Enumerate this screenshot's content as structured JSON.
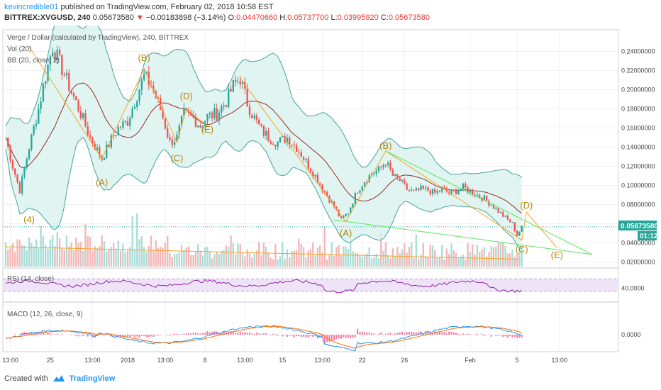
{
  "header": {
    "username": "kevincredible01",
    "published_text": "published on TradingView.com, February 02, 2018 10:58 EST",
    "symbol": "BITTREX:XVGUSD, 240",
    "last": "0.05673580",
    "change_arrow": "▼",
    "change": "−0.00183898 (−3.14%)",
    "open_label": "O:",
    "open": "0.04470660",
    "high_label": "H:",
    "high": "0.05737700",
    "low_label": "L:",
    "low": "0.03995920",
    "close_label": "C:",
    "close": "0.05673580"
  },
  "legend": {
    "title": "Verge / Dollar (calculated by TradingView), 240, BITTREX",
    "vol": "Vol (20)",
    "bb": "BB (20, close, 2)",
    "rsi": "RSI (14, close)",
    "macd": "MACD (12, 26, close, 9)"
  },
  "price_badge": "0.05673580",
  "time_badge": "01:12",
  "footer": {
    "created_with": "Created with",
    "brand": "TradingView"
  },
  "colors": {
    "up": "#26a69a",
    "down": "#ef5350",
    "bb": "#4aa39a",
    "bb_fill": "#d8f1ee",
    "basis": "#9c2a2a",
    "wave": "#f5a623",
    "trend": "#5ce65c",
    "rsi": "#8e24aa",
    "rsi_band": "#efe4f7",
    "macd": "#2196f3",
    "signal": "#ff6d00",
    "hist": "#e91e63"
  },
  "chart_data": {
    "type": "candlestick",
    "x_ticks": [
      "13:00",
      "25",
      "13:00",
      "2018",
      "13:00",
      "8",
      "13:00",
      "15",
      "13:00",
      "22",
      "26",
      "Feb",
      "5",
      "13:00"
    ],
    "price_ticks": [
      "0.24000000",
      "0.22000000",
      "0.20000000",
      "0.18000000",
      "0.16000000",
      "0.14000000",
      "0.12000000",
      "0.10000000",
      "0.08000000",
      "0.06000000",
      "0.04000000",
      "0.02000000"
    ],
    "price_ylim": [
      0.0152,
      0.2522
    ],
    "price_path": [
      [
        0,
        0.15
      ],
      [
        3,
        0.12
      ],
      [
        6,
        0.095
      ],
      [
        10,
        0.14
      ],
      [
        14,
        0.18
      ],
      [
        17,
        0.215
      ],
      [
        20,
        0.245
      ],
      [
        24,
        0.222
      ],
      [
        28,
        0.198
      ],
      [
        32,
        0.175
      ],
      [
        36,
        0.15
      ],
      [
        41,
        0.128
      ],
      [
        45,
        0.148
      ],
      [
        48,
        0.16
      ],
      [
        52,
        0.167
      ],
      [
        56,
        0.195
      ],
      [
        59,
        0.214
      ],
      [
        62,
        0.205
      ],
      [
        66,
        0.18
      ],
      [
        70,
        0.145
      ],
      [
        73,
        0.15
      ],
      [
        76,
        0.175
      ],
      [
        80,
        0.17
      ],
      [
        83,
        0.162
      ],
      [
        86,
        0.172
      ],
      [
        90,
        0.175
      ],
      [
        94,
        0.188
      ],
      [
        97,
        0.204
      ],
      [
        100,
        0.212
      ],
      [
        103,
        0.186
      ],
      [
        106,
        0.17
      ],
      [
        109,
        0.158
      ],
      [
        112,
        0.15
      ],
      [
        116,
        0.145
      ],
      [
        120,
        0.15
      ],
      [
        124,
        0.14
      ],
      [
        128,
        0.125
      ],
      [
        132,
        0.11
      ],
      [
        136,
        0.093
      ],
      [
        140,
        0.078
      ],
      [
        143,
        0.064
      ],
      [
        146,
        0.072
      ],
      [
        150,
        0.095
      ],
      [
        153,
        0.105
      ],
      [
        156,
        0.112
      ],
      [
        159,
        0.116
      ],
      [
        162,
        0.125
      ],
      [
        165,
        0.11
      ],
      [
        168,
        0.105
      ],
      [
        171,
        0.096
      ],
      [
        174,
        0.093
      ],
      [
        177,
        0.096
      ],
      [
        180,
        0.095
      ],
      [
        183,
        0.092
      ],
      [
        186,
        0.096
      ],
      [
        189,
        0.092
      ],
      [
        192,
        0.094
      ],
      [
        195,
        0.098
      ],
      [
        198,
        0.094
      ],
      [
        201,
        0.09
      ],
      [
        204,
        0.086
      ],
      [
        207,
        0.08
      ],
      [
        210,
        0.073
      ],
      [
        213,
        0.066
      ],
      [
        216,
        0.06
      ],
      [
        218,
        0.048
      ],
      [
        220,
        0.056
      ]
    ],
    "volume_ylim": [
      0,
      0.12
    ],
    "rsi_ticks": [
      "40.0000"
    ],
    "rsi_band": [
      30,
      70
    ],
    "macd_ticks": [
      "0.0000"
    ],
    "waves": [
      {
        "label": "(A)",
        "x": 41,
        "price": 0.1
      },
      {
        "label": "(B)",
        "x": 59,
        "price": 0.23
      },
      {
        "label": "(C)",
        "x": 73,
        "price": 0.125
      },
      {
        "label": "(D)",
        "x": 77,
        "price": 0.19
      },
      {
        "label": "(E)",
        "x": 86,
        "price": 0.155
      },
      {
        "label": "(4)",
        "x": 10,
        "price": 0.061
      },
      {
        "label": "(A)",
        "x": 145,
        "price": 0.047
      },
      {
        "label": "(B)",
        "x": 162,
        "price": 0.138
      },
      {
        "label": "(C)",
        "x": 220,
        "price": 0.03
      },
      {
        "label": "(D)",
        "x": 222,
        "price": 0.076
      },
      {
        "label": "(E)",
        "x": 235,
        "price": 0.024
      }
    ]
  }
}
